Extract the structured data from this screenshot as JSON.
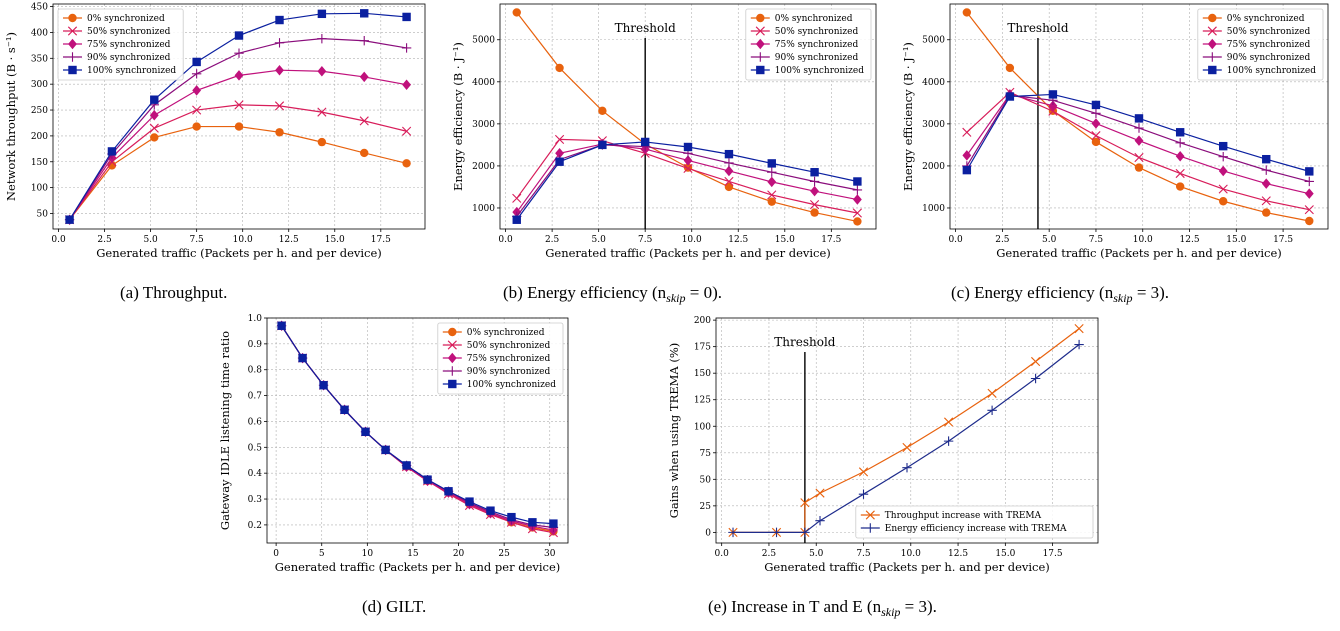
{
  "colors": {
    "s0": "#e8620e",
    "s50": "#d81d5a",
    "s75": "#c0117c",
    "s90": "#8a0d7c",
    "s100": "#0b20a0",
    "trema_thr": "#e8620e",
    "trema_ee": "#1e2c8c"
  },
  "series_names": [
    "0% synchronized",
    "50% synchronized",
    "75% synchronized",
    "90% synchronized",
    "100% synchronized"
  ],
  "chart_data": [
    {
      "id": "a",
      "type": "line",
      "caption": "(a) Throughput.",
      "xlabel": "Generated traffic (Packets per h. and per device)",
      "ylabel": "Network throughput (B · s⁻¹)",
      "xlim": [
        -0.3,
        19.9
      ],
      "ylim": [
        20,
        455
      ],
      "xticks": [
        0.0,
        2.5,
        5.0,
        7.5,
        10.0,
        12.5,
        15.0,
        17.5
      ],
      "xtick_labels": [
        "0.0",
        "2.5",
        "5.0",
        "7.5",
        "10.0",
        "12.5",
        "15.0",
        "17.5"
      ],
      "yticks": [
        50,
        100,
        150,
        200,
        250,
        300,
        350,
        400,
        450
      ],
      "legend": "top-left",
      "x": [
        0.6,
        2.9,
        5.2,
        7.5,
        9.8,
        12.0,
        14.3,
        16.6,
        18.9
      ],
      "series": [
        {
          "name": "0% synchronized",
          "values": [
            38,
            143,
            197,
            218,
            218,
            207,
            188,
            167,
            147
          ]
        },
        {
          "name": "50% synchronized",
          "values": [
            38,
            150,
            215,
            250,
            260,
            258,
            246,
            229,
            209
          ]
        },
        {
          "name": "75% synchronized",
          "values": [
            38,
            158,
            240,
            288,
            317,
            327,
            325,
            314,
            299
          ]
        },
        {
          "name": "90% synchronized",
          "values": [
            38,
            165,
            260,
            320,
            360,
            380,
            388,
            384,
            370
          ]
        },
        {
          "name": "100% synchronized",
          "values": [
            38,
            170,
            270,
            343,
            394,
            424,
            436,
            437,
            430
          ]
        }
      ]
    },
    {
      "id": "b",
      "type": "line",
      "caption": "(b) Energy efficiency (n",
      "caption_sub": "skip",
      "caption_tail": " = 0).",
      "xlabel": "Generated traffic (Packets per h. and per device)",
      "ylabel": "Energy efficiency (B · J⁻¹)",
      "xlim": [
        -0.3,
        19.9
      ],
      "ylim": [
        500,
        5850
      ],
      "xticks": [
        0.0,
        2.5,
        5.0,
        7.5,
        10.0,
        12.5,
        15.0,
        17.5
      ],
      "xtick_labels": [
        "0.0",
        "2.5",
        "5.0",
        "7.5",
        "10.0",
        "12.5",
        "15.0",
        "17.5"
      ],
      "yticks": [
        1000,
        2000,
        3000,
        4000,
        5000
      ],
      "legend": "top-right",
      "threshold": {
        "x": 7.5,
        "label": "Threshold"
      },
      "x": [
        0.6,
        2.9,
        5.2,
        7.5,
        9.8,
        12.0,
        14.3,
        16.6,
        18.9
      ],
      "series": [
        {
          "name": "0% synchronized",
          "values": [
            5650,
            4330,
            3310,
            2520,
            1960,
            1500,
            1150,
            890,
            680
          ]
        },
        {
          "name": "50% synchronized",
          "values": [
            1230,
            2630,
            2600,
            2300,
            1940,
            1630,
            1310,
            1080,
            880
          ]
        },
        {
          "name": "75% synchronized",
          "values": [
            900,
            2300,
            2520,
            2400,
            2130,
            1880,
            1620,
            1400,
            1200
          ]
        },
        {
          "name": "90% synchronized",
          "values": [
            800,
            2150,
            2500,
            2460,
            2300,
            2070,
            1850,
            1630,
            1430
          ]
        },
        {
          "name": "100% synchronized",
          "values": [
            720,
            2100,
            2500,
            2570,
            2450,
            2280,
            2060,
            1850,
            1630
          ]
        }
      ]
    },
    {
      "id": "c",
      "type": "line",
      "caption": "(c) Energy efficiency (n",
      "caption_sub": "skip",
      "caption_tail": " = 3).",
      "xlabel": "Generated traffic (Packets per h. and per device)",
      "ylabel": "Energy efficiency (B · J⁻¹)",
      "xlim": [
        -0.3,
        19.9
      ],
      "ylim": [
        500,
        5850
      ],
      "xticks": [
        0.0,
        2.5,
        5.0,
        7.5,
        10.0,
        12.5,
        15.0,
        17.5
      ],
      "xtick_labels": [
        "0.0",
        "2.5",
        "5.0",
        "7.5",
        "10.0",
        "12.5",
        "15.0",
        "17.5"
      ],
      "yticks": [
        1000,
        2000,
        3000,
        4000,
        5000
      ],
      "legend": "top-right",
      "threshold": {
        "x": 4.4,
        "label": "Threshold"
      },
      "x": [
        0.6,
        2.9,
        5.2,
        7.5,
        9.8,
        12.0,
        14.3,
        16.6,
        18.9
      ],
      "series": [
        {
          "name": "0% synchronized",
          "values": [
            5650,
            4330,
            3310,
            2570,
            1960,
            1510,
            1160,
            890,
            690
          ]
        },
        {
          "name": "50% synchronized",
          "values": [
            2800,
            3750,
            3300,
            2720,
            2200,
            1820,
            1450,
            1170,
            960
          ]
        },
        {
          "name": "75% synchronized",
          "values": [
            2250,
            3700,
            3430,
            3010,
            2600,
            2230,
            1880,
            1580,
            1340
          ]
        },
        {
          "name": "90% synchronized",
          "values": [
            2000,
            3680,
            3560,
            3250,
            2900,
            2550,
            2220,
            1900,
            1630
          ]
        },
        {
          "name": "100% synchronized",
          "values": [
            1900,
            3650,
            3700,
            3450,
            3130,
            2800,
            2470,
            2160,
            1870
          ]
        }
      ]
    },
    {
      "id": "d",
      "type": "line",
      "caption": "(d) GILT.",
      "xlabel": "Generated traffic (Packets per h. and per device)",
      "ylabel": "Gateway IDLE listening time ratio",
      "xlim": [
        -1.0,
        32.0
      ],
      "ylim": [
        0.13,
        1.0
      ],
      "xticks": [
        0,
        5,
        10,
        15,
        20,
        25,
        30
      ],
      "xtick_labels": [
        "0",
        "5",
        "10",
        "15",
        "20",
        "25",
        "30"
      ],
      "yticks": [
        0.2,
        0.3,
        0.4,
        0.5,
        0.6,
        0.7,
        0.8,
        0.9,
        1.0
      ],
      "ytick_labels": [
        "0.2",
        "0.3",
        "0.4",
        "0.5",
        "0.6",
        "0.7",
        "0.8",
        "0.9",
        "1.0"
      ],
      "legend": "top-right",
      "x": [
        0.6,
        2.9,
        5.2,
        7.5,
        9.8,
        12.0,
        14.3,
        16.6,
        18.9,
        21.2,
        23.5,
        25.8,
        28.1,
        30.4
      ],
      "series": [
        {
          "name": "0% synchronized",
          "values": [
            0.97,
            0.845,
            0.74,
            0.645,
            0.56,
            0.49,
            0.425,
            0.37,
            0.325,
            0.28,
            0.245,
            0.21,
            0.19,
            0.175
          ]
        },
        {
          "name": "50% synchronized",
          "values": [
            0.97,
            0.845,
            0.74,
            0.645,
            0.56,
            0.49,
            0.425,
            0.37,
            0.32,
            0.275,
            0.24,
            0.21,
            0.185,
            0.17
          ]
        },
        {
          "name": "75% synchronized",
          "values": [
            0.97,
            0.845,
            0.74,
            0.645,
            0.56,
            0.49,
            0.425,
            0.37,
            0.325,
            0.28,
            0.245,
            0.215,
            0.195,
            0.18
          ]
        },
        {
          "name": "90% synchronized",
          "values": [
            0.97,
            0.845,
            0.74,
            0.645,
            0.56,
            0.49,
            0.43,
            0.375,
            0.33,
            0.285,
            0.25,
            0.22,
            0.2,
            0.19
          ]
        },
        {
          "name": "100% synchronized",
          "values": [
            0.97,
            0.845,
            0.74,
            0.645,
            0.56,
            0.49,
            0.43,
            0.375,
            0.33,
            0.29,
            0.255,
            0.23,
            0.21,
            0.205
          ]
        }
      ]
    },
    {
      "id": "e",
      "type": "line",
      "caption": "(e) Increase in T and E (n",
      "caption_sub": "skip",
      "caption_tail": " = 3).",
      "xlabel": "Generated traffic (Packets per h. and per device)",
      "ylabel": "Gains when using TREMA (%)",
      "xlim": [
        -0.3,
        19.9
      ],
      "ylim": [
        -10,
        202
      ],
      "xticks": [
        0.0,
        2.5,
        5.0,
        7.5,
        10.0,
        12.5,
        15.0,
        17.5
      ],
      "xtick_labels": [
        "0.0",
        "2.5",
        "5.0",
        "7.5",
        "10.0",
        "12.5",
        "15.0",
        "17.5"
      ],
      "yticks": [
        0,
        25,
        50,
        75,
        100,
        125,
        150,
        175,
        200
      ],
      "legend": "bottom-right",
      "threshold": {
        "x": 4.4,
        "label": "Threshold"
      },
      "series": [
        {
          "name": "Throughput increase with TREMA",
          "x": [
            0.6,
            2.9,
            4.4,
            4.4,
            5.2,
            7.5,
            9.8,
            12.0,
            14.3,
            16.6,
            18.9
          ],
          "values": [
            0,
            0,
            0,
            28,
            37,
            57,
            80,
            104,
            131,
            161,
            192
          ]
        },
        {
          "name": "Energy efficiency increase with TREMA",
          "x": [
            0.6,
            2.9,
            4.4,
            5.2,
            7.5,
            9.8,
            12.0,
            14.3,
            16.6,
            18.9
          ],
          "values": [
            0,
            0,
            0,
            11,
            36,
            61,
            86,
            115,
            145,
            177
          ]
        }
      ]
    }
  ]
}
